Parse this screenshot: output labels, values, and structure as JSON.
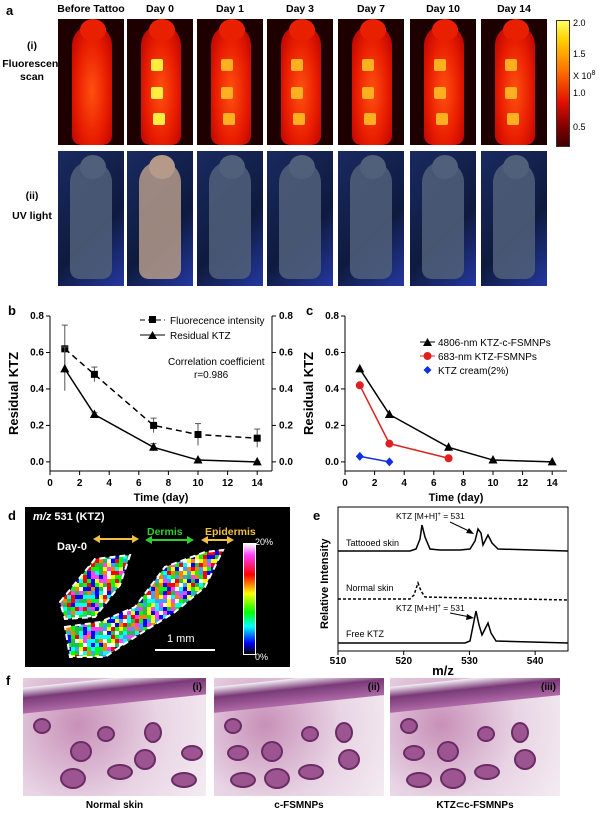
{
  "panel_a": {
    "label": "a",
    "columns": [
      "Before Tattoo",
      "Day 0",
      "Day 1",
      "Day 3",
      "Day 7",
      "Day 10",
      "Day 14"
    ],
    "row1_label": "(i)",
    "row1_text": "Fluorescent scan",
    "row2_label": "(ii)",
    "row2_text": "UV light",
    "colorbar_ticks": [
      "2.0",
      "1.5",
      "1.0",
      "0.5"
    ],
    "colorbar_unit": "X 10",
    "colorbar_exp": "8"
  },
  "panel_b": {
    "label": "b",
    "legend_fluor": "Fluorecence intensity",
    "legend_ktz": "Residual KTZ",
    "corr_line1": "Correlation coefficient",
    "corr_line2": "r=0.986"
  },
  "panel_c": {
    "label": "c",
    "legend": [
      "4806-nm KTZ-c-FSMNPs",
      "683-nm KTZ-FSMNPs",
      "KTZ cream(2%)"
    ]
  },
  "panel_d": {
    "label": "d",
    "title_italic": "m/z",
    "title_rest": " 531 (KTZ)",
    "day": "Day-0",
    "dermis": "Dermis",
    "epidermis": "Epidermis",
    "scale": "1 mm",
    "cb_top": "20%",
    "cb_bot": "0%"
  },
  "panel_e": {
    "label": "e",
    "tattooed": "Tattooed skin",
    "normal": "Normal skin",
    "free": "Free KTZ",
    "peak_a": "KTZ [M+H]",
    "peak_sup": "+",
    "peak_b": " = 531",
    "ylabel": "Relative Intensity",
    "xlabel": "m/z",
    "xticks": [
      "510",
      "520",
      "530",
      "540"
    ]
  },
  "panel_f": {
    "label": "f",
    "tags": [
      "(i)",
      "(ii)",
      "(iii)"
    ],
    "captions": [
      "Normal skin",
      "c-FSMNPs",
      "KTZ⊂c-FSMNPs"
    ]
  },
  "chart_data": [
    {
      "type": "line",
      "title": "",
      "xlabel": "Time (day)",
      "ylabel": "Residual KTZ",
      "y2label": "Fluorescence intensity",
      "xlim": [
        0,
        15
      ],
      "ylim": [
        -0.05,
        0.8
      ],
      "xticks": [
        0,
        2,
        4,
        6,
        8,
        10,
        12,
        14
      ],
      "yticks": [
        0.0,
        0.2,
        0.4,
        0.6,
        0.8
      ],
      "series": [
        {
          "name": "Fluorecence intensity",
          "x": [
            1,
            3,
            7,
            10,
            14
          ],
          "values": [
            0.62,
            0.48,
            0.2,
            0.15,
            0.13
          ],
          "errors": [
            0.13,
            0.04,
            0.04,
            0.06,
            0.05
          ],
          "style": "dashed",
          "marker": "square"
        },
        {
          "name": "Residual KTZ",
          "x": [
            1,
            3,
            7,
            10,
            14
          ],
          "values": [
            0.51,
            0.26,
            0.08,
            0.01,
            0.0
          ],
          "errors": [
            0.12,
            0.01,
            0.02,
            0.005,
            0.003
          ],
          "style": "solid",
          "marker": "triangle"
        }
      ]
    },
    {
      "type": "line",
      "title": "",
      "xlabel": "Time (day)",
      "ylabel": "Residual KTZ",
      "xlim": [
        0,
        15
      ],
      "ylim": [
        -0.05,
        0.8
      ],
      "xticks": [
        0,
        2,
        4,
        6,
        8,
        10,
        12,
        14
      ],
      "yticks": [
        0.0,
        0.2,
        0.4,
        0.6,
        0.8
      ],
      "series": [
        {
          "name": "4806-nm KTZ-c-FSMNPs",
          "x": [
            1,
            3,
            7,
            10,
            14
          ],
          "values": [
            0.51,
            0.26,
            0.08,
            0.01,
            0.0
          ],
          "color": "#000000",
          "marker": "triangle"
        },
        {
          "name": "683-nm KTZ-FSMNPs",
          "x": [
            1,
            3,
            7
          ],
          "values": [
            0.42,
            0.1,
            0.02
          ],
          "color": "#e02020",
          "marker": "circle"
        },
        {
          "name": "KTZ cream(2%)",
          "x": [
            1,
            3
          ],
          "values": [
            0.03,
            0.0
          ],
          "color": "#1030e0",
          "marker": "diamond"
        }
      ]
    }
  ]
}
